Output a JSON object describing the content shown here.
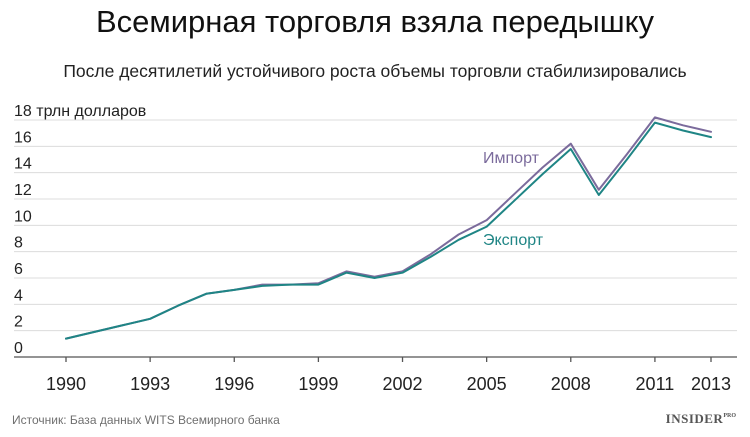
{
  "header": {
    "title": "Всемирная торговля взяла передышку",
    "subtitle": "После десятилетий устойчивого роста объемы торговли стабилизировались"
  },
  "footer": {
    "source": "Источник: База данных WITS Всемирного банка",
    "brand": "INSIDER",
    "brand_suffix": "PRO"
  },
  "colors": {
    "import": "#7b6b9c",
    "export": "#1f8585",
    "grid": "#dcdcdc",
    "axis": "#555555"
  },
  "chart_data": {
    "type": "line",
    "ylim": [
      0,
      18
    ],
    "yticks": [
      0,
      2,
      4,
      6,
      8,
      10,
      12,
      14,
      16,
      18
    ],
    "y_top_tick_label": "18 трлн долларов",
    "xlim": [
      1990,
      2013
    ],
    "xticks": [
      1990,
      1993,
      1996,
      1999,
      2002,
      2005,
      2008,
      2011,
      2013
    ],
    "grid": true,
    "series": [
      {
        "name": "Импорт",
        "x": [
          1990,
          1991,
          1992,
          1993,
          1994,
          1995,
          1996,
          1997,
          1998,
          1999,
          2000,
          2001,
          2002,
          2003,
          2004,
          2005,
          2006,
          2007,
          2008,
          2009,
          2010,
          2011,
          2012,
          2013
        ],
        "values": [
          1.4,
          1.9,
          2.4,
          2.9,
          3.9,
          4.8,
          5.1,
          5.5,
          5.5,
          5.6,
          6.5,
          6.1,
          6.5,
          7.8,
          9.3,
          10.4,
          12.4,
          14.4,
          16.2,
          12.7,
          15.4,
          18.2,
          17.6,
          17.1
        ]
      },
      {
        "name": "Экспорт",
        "x": [
          1990,
          1991,
          1992,
          1993,
          1994,
          1995,
          1996,
          1997,
          1998,
          1999,
          2000,
          2001,
          2002,
          2003,
          2004,
          2005,
          2006,
          2007,
          2008,
          2009,
          2010,
          2011,
          2012,
          2013
        ],
        "values": [
          1.4,
          1.9,
          2.4,
          2.9,
          3.9,
          4.8,
          5.1,
          5.4,
          5.5,
          5.5,
          6.4,
          6.0,
          6.4,
          7.6,
          8.9,
          9.9,
          11.9,
          13.9,
          15.8,
          12.3,
          15.0,
          17.8,
          17.2,
          16.7
        ]
      }
    ]
  }
}
